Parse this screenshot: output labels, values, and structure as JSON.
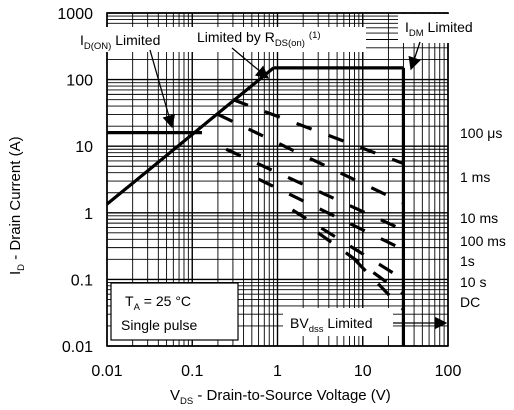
{
  "chart_data": {
    "type": "line",
    "x_scale": "log",
    "y_scale": "log",
    "xlim": [
      0.01,
      100
    ],
    "ylim": [
      0.01,
      1000
    ],
    "grid": true,
    "x_ticks": [
      "0.01",
      "0.1",
      "1",
      "10",
      "100"
    ],
    "y_ticks": [
      "1000",
      "100",
      "10",
      "1",
      "0.1",
      "0.01"
    ],
    "xlabel": {
      "main": "V",
      "sub": "DS",
      "rest": " - Drain-to-Source Voltage (V)"
    },
    "ylabel": {
      "main": "I",
      "sub": "D",
      "rest": " - Drain Current (A)"
    },
    "boundaries": {
      "id_on_limit": {
        "x": [
          0.01,
          0.13
        ],
        "y": [
          16,
          16
        ]
      },
      "rds_on_limit": {
        "x": [
          0.01,
          0.9
        ],
        "y": [
          1.35,
          150
        ]
      },
      "idm_limit": {
        "x": [
          0.9,
          30
        ],
        "y": [
          150,
          150
        ]
      },
      "bvdss_limit": {
        "x": [
          30,
          30
        ],
        "y": [
          150,
          0.01
        ]
      }
    },
    "series": [
      {
        "name": "100 μs",
        "x": [
          0.3,
          30
        ],
        "y": [
          50,
          5.5
        ]
      },
      {
        "name": "1 ms",
        "x": [
          0.2,
          30
        ],
        "y": [
          30,
          1.4
        ]
      },
      {
        "name": "10 ms",
        "x": [
          0.25,
          30
        ],
        "y": [
          9,
          0.55
        ]
      },
      {
        "name": "100 ms",
        "x": [
          0.6,
          30
        ],
        "y": [
          3.2,
          0.28
        ]
      },
      {
        "name": "1s",
        "x": [
          1.5,
          30
        ],
        "y": [
          1.1,
          0.1
        ]
      },
      {
        "name": "10 s",
        "x": [
          3,
          30
        ],
        "y": [
          0.5,
          0.06
        ]
      },
      {
        "name": "DC",
        "x": [
          8,
          30
        ],
        "y": [
          0.2,
          0.035
        ]
      }
    ],
    "annotations": {
      "id_on": {
        "main": "I",
        "sub": "D(ON)",
        "rest": " Limited"
      },
      "rds_on": {
        "main": "Limited by R",
        "sub": "DS(on)",
        "sup": "(1)"
      },
      "idm": {
        "main": "I",
        "sub": "DM",
        "rest": " Limited"
      },
      "bvdss": {
        "main": "BV",
        "sub": "dss",
        "rest": " Limited"
      },
      "conditions": {
        "line1_main": "T",
        "line1_sub": "A",
        "line1_rest": " = 25 °C",
        "line2": "Single pulse"
      }
    }
  }
}
